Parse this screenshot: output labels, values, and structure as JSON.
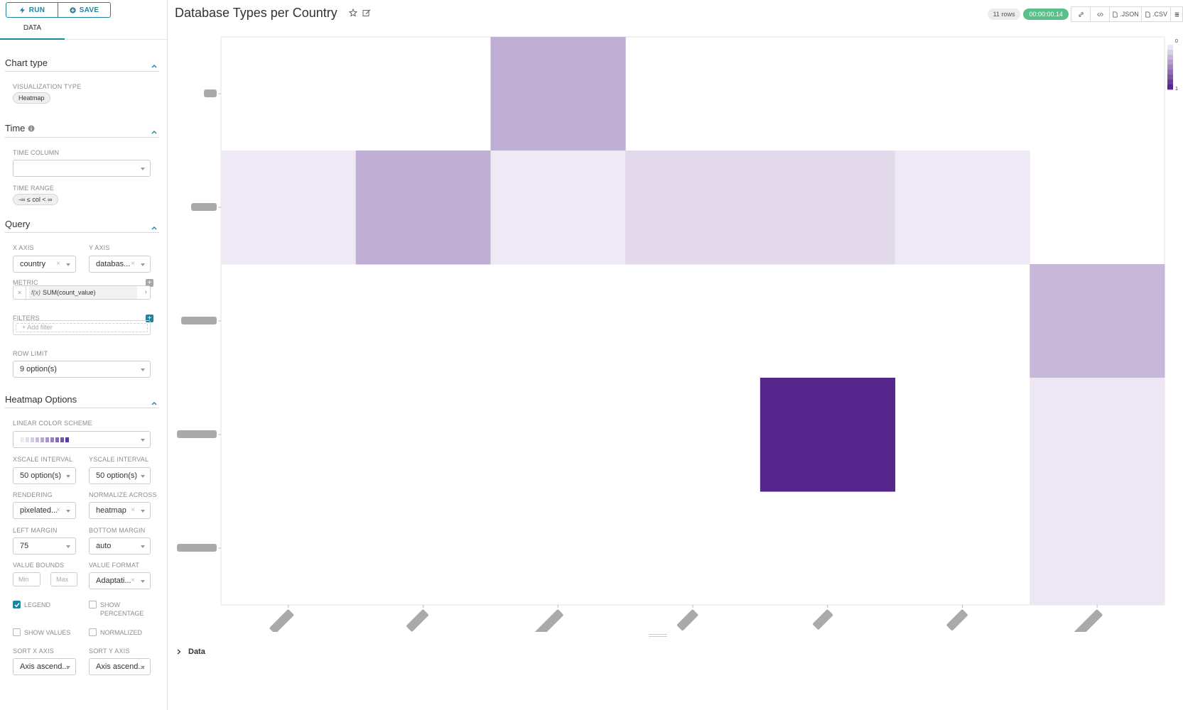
{
  "sidebar": {
    "run_label": "RUN",
    "save_label": "SAVE",
    "tab_data": "DATA",
    "chart_type": {
      "title": "Chart type",
      "viz_label": "VISUALIZATION TYPE",
      "viz_value": "Heatmap"
    },
    "time": {
      "title": "Time",
      "time_column_label": "TIME COLUMN",
      "time_column_value": "",
      "time_range_label": "TIME RANGE",
      "time_range_value": "-∞ ≤ col < ∞"
    },
    "query": {
      "title": "Query",
      "x_axis_label": "X AXIS",
      "x_axis_value": "country",
      "y_axis_label": "Y AXIS",
      "y_axis_value": "databas...",
      "metric_label": "METRIC",
      "metric_fx": "f(x)",
      "metric_value": "SUM(count_value)",
      "filters_label": "FILTERS",
      "add_filter": "Add filter",
      "row_limit_label": "ROW LIMIT",
      "row_limit_value": "9 option(s)"
    },
    "heatmap": {
      "title": "Heatmap Options",
      "color_scheme_label": "LINEAR COLOR SCHEME",
      "scheme_colors": [
        "#eeeaf3",
        "#e2dced",
        "#d4cce5",
        "#c6bbdc",
        "#b6a8d2",
        "#a694c8",
        "#9580bd",
        "#836bb2",
        "#7157a7",
        "#5a3c98"
      ],
      "xscale_label": "XSCALE INTERVAL",
      "xscale_value": "50 option(s)",
      "yscale_label": "YSCALE INTERVAL",
      "yscale_value": "50 option(s)",
      "rendering_label": "RENDERING",
      "rendering_value": "pixelated...",
      "normalize_label": "NORMALIZE ACROSS",
      "normalize_value": "heatmap",
      "left_margin_label": "LEFT MARGIN",
      "left_margin_value": "75",
      "bottom_margin_label": "BOTTOM MARGIN",
      "bottom_margin_value": "auto",
      "value_bounds_label": "VALUE BOUNDS",
      "min_placeholder": "Min",
      "max_placeholder": "Max",
      "value_format_label": "VALUE FORMAT",
      "value_format_value": "Adaptati...",
      "legend_label": "LEGEND",
      "legend_checked": true,
      "show_pct_label_1": "SHOW",
      "show_pct_label_2": "PERCENTAGE",
      "show_values_label": "SHOW VALUES",
      "normalized_label": "NORMALIZED",
      "sort_x_label": "SORT X AXIS",
      "sort_x_value": "Axis ascend...",
      "sort_y_label": "SORT Y AXIS",
      "sort_y_value": "Axis ascend..."
    }
  },
  "header": {
    "title": "Database Types per Country",
    "rows_badge": "11 rows",
    "time_badge": "00:00:00.14",
    "json_label": ".JSON",
    "csv_label": ".CSV"
  },
  "data_section": {
    "label": "Data"
  },
  "chart_data": {
    "type": "heatmap",
    "x_count": 7,
    "y_count": 5,
    "x_labels_visible": false,
    "y_labels_visible": false,
    "cells": [
      {
        "x": 2,
        "y": 0,
        "value": 0.37
      },
      {
        "x": 0,
        "y": 1,
        "value": 0.1
      },
      {
        "x": 1,
        "y": 1,
        "value": 0.37
      },
      {
        "x": 2,
        "y": 1,
        "value": 0.1
      },
      {
        "x": 3,
        "y": 1,
        "value": 0.17
      },
      {
        "x": 4,
        "y": 1,
        "value": 0.17
      },
      {
        "x": 5,
        "y": 1,
        "value": 0.1
      },
      {
        "x": 6,
        "y": 2,
        "value": 0.33
      },
      {
        "x": 4,
        "y": 3,
        "value": 1.0
      },
      {
        "x": 6,
        "y": 3,
        "value": 0.11
      },
      {
        "x": 6,
        "y": 4,
        "value": 0.11
      }
    ],
    "color_low": "#ffffff",
    "color_high": "#55278c",
    "legend_min": "0",
    "legend_max": "1"
  }
}
